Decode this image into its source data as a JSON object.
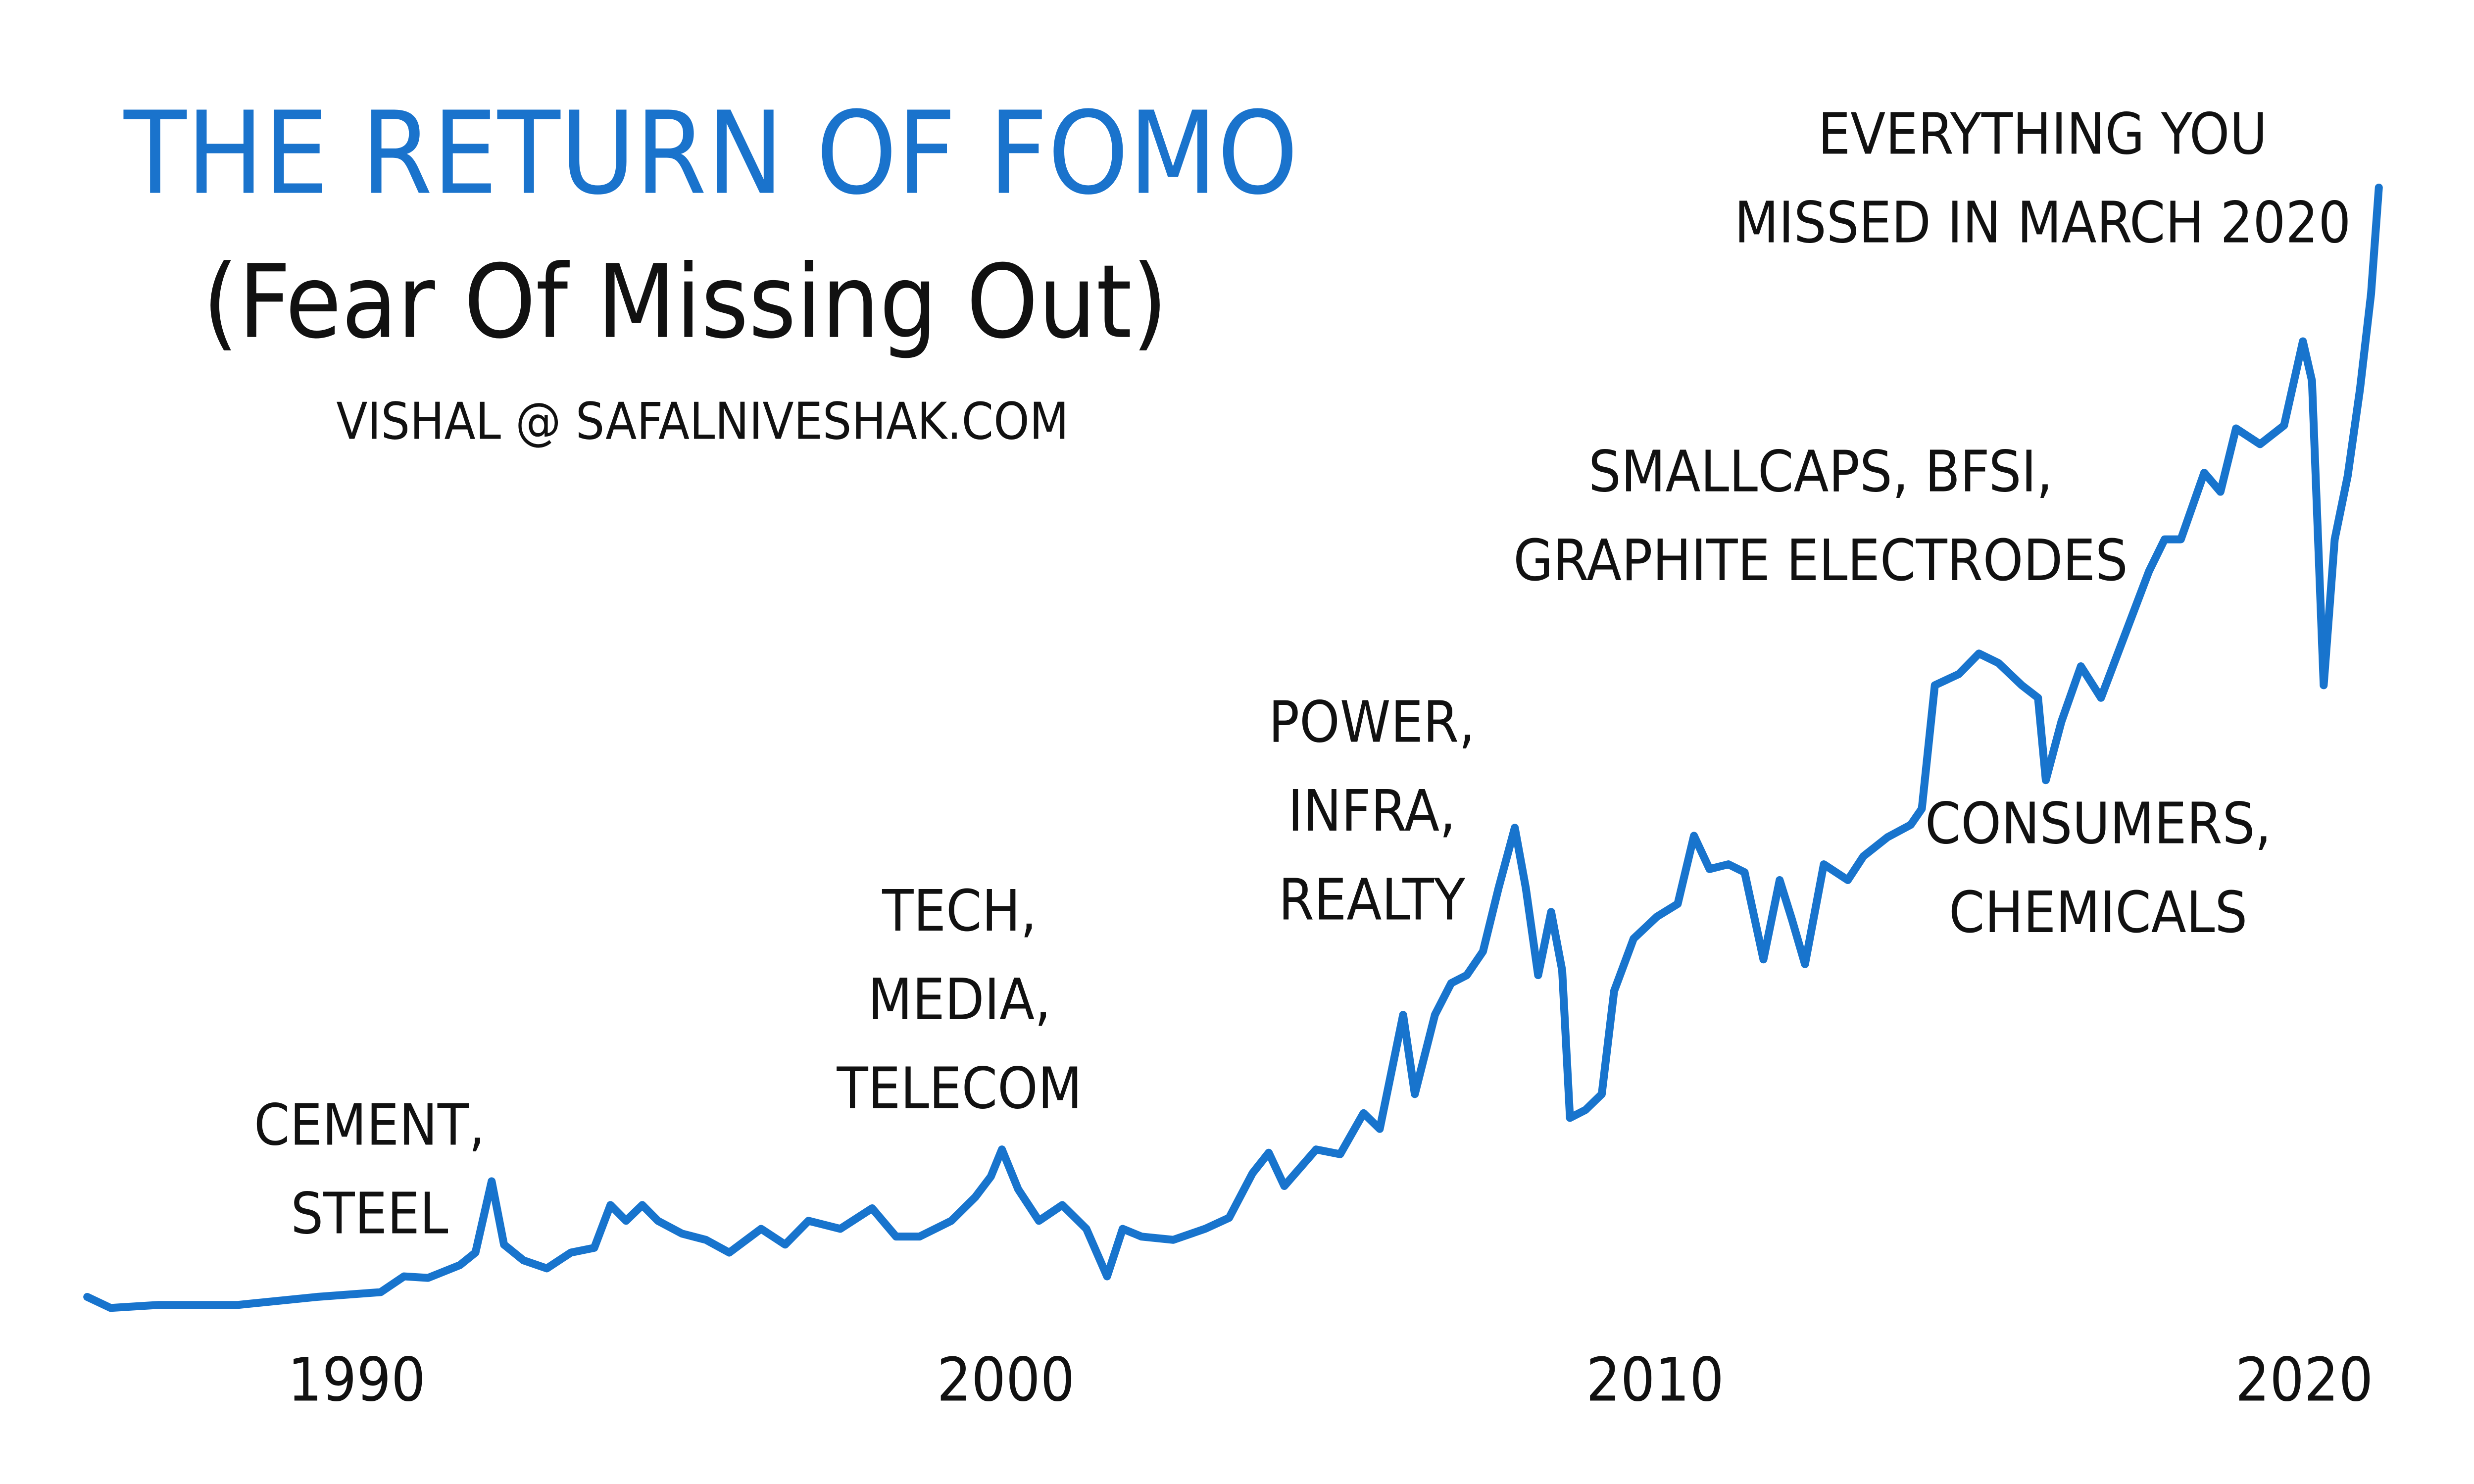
{
  "chart_data": {
    "type": "line",
    "title": "THE RETURN OF FOMO",
    "subtitle": "(Fear Of Missing Out)",
    "credit": "VISHAL @ SAFALNIVESHAK.COM",
    "color": "#1874cd",
    "xlim": [
      1985.85,
      2021.15
    ],
    "xticks": [
      1990,
      2000,
      2010,
      2020
    ],
    "ylim": [
      0,
      55000
    ],
    "annotations": [
      {
        "lines": [
          "CEMENT,",
          "STEEL"
        ]
      },
      {
        "lines": [
          "TECH,",
          "MEDIA,",
          "TELECOM"
        ]
      },
      {
        "lines": [
          "POWER,",
          "INFRA,",
          "REALTY"
        ]
      },
      {
        "lines": [
          "SMALLCAPS, BFSI,",
          "GRAPHITE ELECTRODES"
        ]
      },
      {
        "lines": [
          "CONSUMERS,",
          "CHEMICALS"
        ]
      },
      {
        "lines": [
          "EVERYTHING YOU",
          "MISSED IN MARCH 2020"
        ]
      }
    ],
    "x": [
      1985.85,
      1986.21,
      1986.95,
      1988.17,
      1989.39,
      1990.37,
      1990.73,
      1991.1,
      1991.59,
      1991.83,
      1992.08,
      1992.27,
      1992.57,
      1992.93,
      1993.3,
      1993.66,
      1993.91,
      1994.15,
      1994.4,
      1994.64,
      1995.01,
      1995.38,
      1995.74,
      1996.23,
      1996.6,
      1996.96,
      1997.45,
      1997.94,
      1998.31,
      1998.67,
      1999.16,
      1999.53,
      1999.77,
      1999.94,
      2000.19,
      2000.51,
      2000.87,
      2001.24,
      2001.56,
      2001.8,
      2002.09,
      2002.58,
      2003.07,
      2003.44,
      2003.8,
      2004.05,
      2004.29,
      2004.78,
      2005.15,
      2005.51,
      2005.76,
      2006.12,
      2006.3,
      2006.61,
      2006.86,
      2007.1,
      2007.35,
      2007.59,
      2007.84,
      2008.01,
      2008.2,
      2008.4,
      2008.57,
      2008.69,
      2008.93,
      2009.18,
      2009.37,
      2009.67,
      2010.03,
      2010.35,
      2010.6,
      2010.84,
      2011.13,
      2011.38,
      2011.67,
      2011.92,
      2012.11,
      2012.31,
      2012.6,
      2012.97,
      2013.21,
      2013.58,
      2013.94,
      2014.11,
      2014.31,
      2014.68,
      2014.99,
      2015.29,
      2015.65,
      2015.9,
      2016.02,
      2016.26,
      2016.56,
      2016.87,
      2017.24,
      2017.61,
      2017.85,
      2018.1,
      2018.46,
      2018.71,
      2018.95,
      2019.32,
      2019.69,
      2019.98,
      2020.12,
      2020.3,
      2020.47,
      2020.67,
      2020.86,
      2021.03,
      2021.15
    ],
    "values": [
      880,
      370,
      510,
      510,
      880,
      1100,
      1830,
      1760,
      2350,
      2930,
      6230,
      3300,
      2570,
      2200,
      2930,
      3150,
      5130,
      4400,
      5130,
      4400,
      3810,
      3520,
      2930,
      4030,
      3300,
      4400,
      4030,
      4980,
      3670,
      3670,
      4400,
      5500,
      6450,
      7700,
      5860,
      4400,
      5130,
      4030,
      1830,
      4030,
      3670,
      3520,
      4030,
      4540,
      6600,
      7550,
      6010,
      7700,
      7480,
      9380,
      8650,
      13930,
      10260,
      13930,
      15390,
      15760,
      16860,
      19790,
      22580,
      19790,
      15760,
      18690,
      15980,
      9160,
      9530,
      10260,
      15030,
      17450,
      18470,
      19060,
      22210,
      20670,
      20890,
      20520,
      16490,
      20160,
      18330,
      16270,
      20890,
      20160,
      21260,
      22140,
      22720,
      23460,
      29170,
      29690,
      30640,
      30200,
      29170,
      28590,
      24780,
      27490,
      30050,
      28590,
      31520,
      34450,
      35920,
      35920,
      39000,
      38120,
      41050,
      40320,
      41190,
      45080,
      43250,
      29170,
      35920,
      38850,
      42880,
      47280,
      52190
    ]
  }
}
